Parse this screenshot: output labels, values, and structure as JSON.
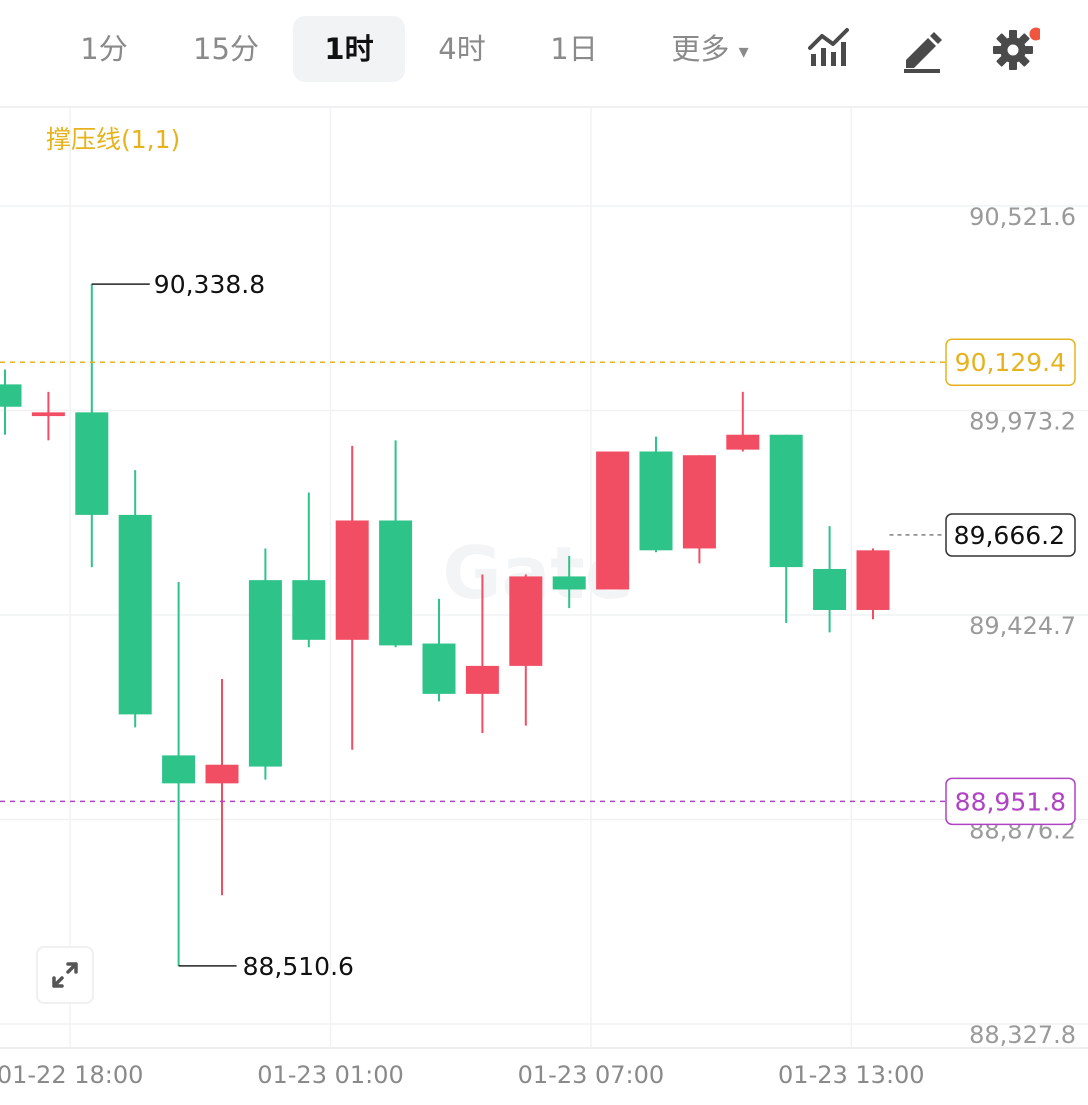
{
  "toolbar": {
    "timeframes": [
      {
        "label": "1分",
        "active": false
      },
      {
        "label": "15分",
        "active": false
      },
      {
        "label": "1时",
        "active": true
      },
      {
        "label": "4时",
        "active": false
      },
      {
        "label": "1日",
        "active": false
      },
      {
        "label": "更多",
        "active": false
      }
    ],
    "more_arrow": "▾",
    "icons": [
      "chart-indicator-icon",
      "draw-pencil-icon",
      "settings-gear-icon"
    ],
    "settings_badge_color": "#f0553f"
  },
  "indicator": {
    "label": "撑压线(1,1)",
    "color": "#e6b31e"
  },
  "chart_data": {
    "type": "candlestick",
    "ylim": [
      88327.8,
      90521.6
    ],
    "y_ticks": [
      "90,521.6",
      "89,973.2",
      "89,424.7",
      "88,876.2",
      "88,327.8"
    ],
    "y_tick_values": [
      90521.6,
      89973.2,
      89424.7,
      88876.2,
      88327.8
    ],
    "x_tick_labels": [
      {
        "label": "01-22 18:00",
        "index": 1.5
      },
      {
        "label": "01-23 01:00",
        "index": 7.5
      },
      {
        "label": "01-23 07:00",
        "index": 13.5
      },
      {
        "label": "01-23 13:00",
        "index": 19.5
      }
    ],
    "up_color": "#2ec389",
    "down_color": "#f24e63",
    "candles": [
      {
        "o": 90010,
        "h": 90110,
        "l": 89935,
        "c": 90070
      },
      {
        "o": 89995,
        "h": 90050,
        "l": 89920,
        "c": 89985
      },
      {
        "o": 89720,
        "h": 90340,
        "l": 89580,
        "c": 89995
      },
      {
        "o": 89185,
        "h": 89840,
        "l": 89150,
        "c": 89720
      },
      {
        "o": 89000,
        "h": 89540,
        "l": 88510,
        "c": 89075
      },
      {
        "o": 89050,
        "h": 89280,
        "l": 88700,
        "c": 89000
      },
      {
        "o": 89045,
        "h": 89630,
        "l": 89010,
        "c": 89545
      },
      {
        "o": 89385,
        "h": 89780,
        "l": 89365,
        "c": 89545
      },
      {
        "o": 89705,
        "h": 89905,
        "l": 89090,
        "c": 89385
      },
      {
        "o": 89370,
        "h": 89920,
        "l": 89365,
        "c": 89705
      },
      {
        "o": 89240,
        "h": 89495,
        "l": 89220,
        "c": 89375
      },
      {
        "o": 89315,
        "h": 89560,
        "l": 89135,
        "c": 89240
      },
      {
        "o": 89555,
        "h": 89560,
        "l": 89155,
        "c": 89315
      },
      {
        "o": 89520,
        "h": 89610,
        "l": 89470,
        "c": 89555
      },
      {
        "o": 89890,
        "h": 89890,
        "l": 89520,
        "c": 89520
      },
      {
        "o": 89625,
        "h": 89930,
        "l": 89620,
        "c": 89890
      },
      {
        "o": 89880,
        "h": 89880,
        "l": 89590,
        "c": 89630
      },
      {
        "o": 89935,
        "h": 90050,
        "l": 89890,
        "c": 89895
      },
      {
        "o": 89580,
        "h": 89935,
        "l": 89430,
        "c": 89935
      },
      {
        "o": 89465,
        "h": 89690,
        "l": 89405,
        "c": 89575
      },
      {
        "o": 89625,
        "h": 89630,
        "l": 89440,
        "c": 89465
      }
    ],
    "annotations": {
      "high": {
        "label": "90,338.8",
        "value": 90338.8,
        "index": 2
      },
      "low": {
        "label": "88,510.6",
        "value": 88510.6,
        "index": 4
      }
    },
    "resistance": {
      "label": "90,129.4",
      "value": 90129.4,
      "color": "#e6b31e"
    },
    "support": {
      "label": "88,951.8",
      "value": 88951.8,
      "color": "#b043c4"
    },
    "last_price": {
      "label": "89,666.2",
      "value": 89666.2
    }
  }
}
